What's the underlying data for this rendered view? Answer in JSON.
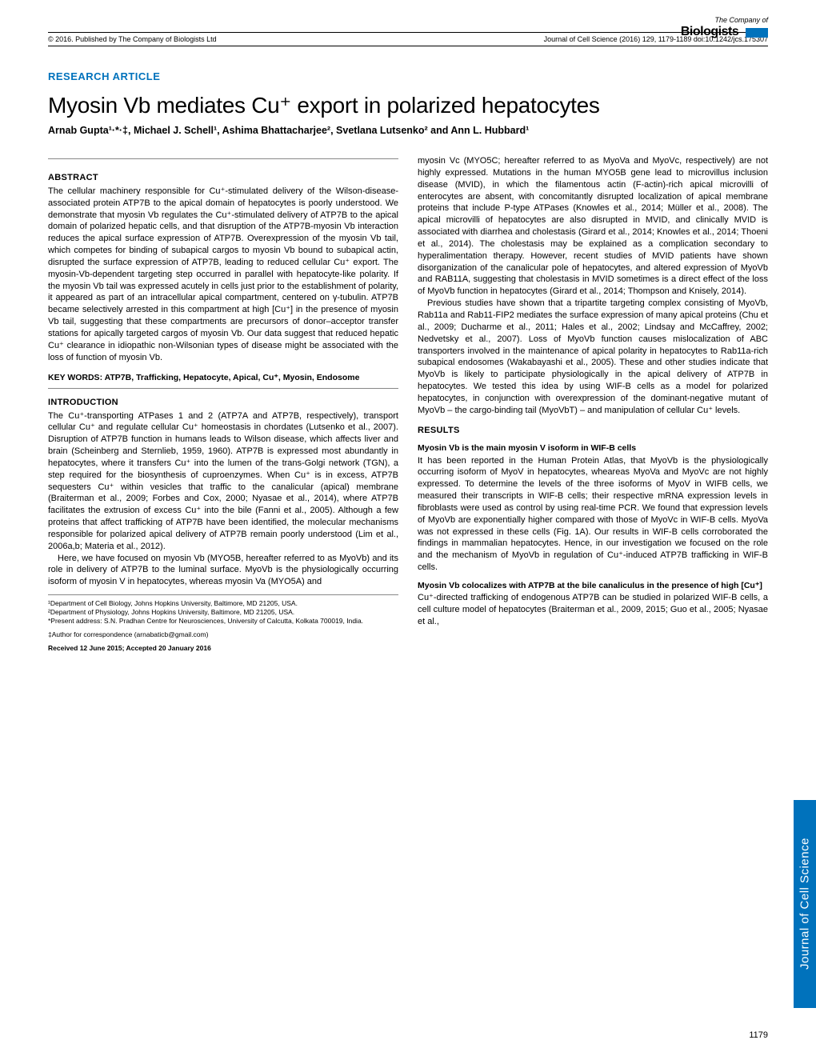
{
  "header": {
    "copyright": "© 2016. Published by The Company of Biologists Ltd",
    "citation": "Journal of Cell Science (2016) 129, 1179-1189 doi:10.1242/jcs.175307"
  },
  "logo": {
    "line1": "The Company of",
    "line2": "Biologists"
  },
  "article_type": "RESEARCH ARTICLE",
  "title": "Myosin Vb mediates Cu⁺ export in polarized hepatocytes",
  "authors": "Arnab Gupta¹·*·‡, Michael J. Schell¹, Ashima Bhattacharjee², Svetlana Lutsenko² and Ann L. Hubbard¹",
  "abstract": {
    "heading": "ABSTRACT",
    "text": "The cellular machinery responsible for Cu⁺-stimulated delivery of the Wilson-disease-associated protein ATP7B to the apical domain of hepatocytes is poorly understood. We demonstrate that myosin Vb regulates the Cu⁺-stimulated delivery of ATP7B to the apical domain of polarized hepatic cells, and that disruption of the ATP7B-myosin Vb interaction reduces the apical surface expression of ATP7B. Overexpression of the myosin Vb tail, which competes for binding of subapical cargos to myosin Vb bound to subapical actin, disrupted the surface expression of ATP7B, leading to reduced cellular Cu⁺ export. The myosin-Vb-dependent targeting step occurred in parallel with hepatocyte-like polarity. If the myosin Vb tail was expressed acutely in cells just prior to the establishment of polarity, it appeared as part of an intracellular apical compartment, centered on γ-tubulin. ATP7B became selectively arrested in this compartment at high [Cu⁺] in the presence of myosin Vb tail, suggesting that these compartments are precursors of donor–acceptor transfer stations for apically targeted cargos of myosin Vb. Our data suggest that reduced hepatic Cu⁺ clearance in idiopathic non-Wilsonian types of disease might be associated with the loss of function of myosin Vb."
  },
  "keywords": "KEY WORDS: ATP7B, Trafficking, Hepatocyte, Apical, Cu⁺, Myosin, Endosome",
  "introduction": {
    "heading": "INTRODUCTION",
    "p1": "The Cu⁺-transporting ATPases 1 and 2 (ATP7A and ATP7B, respectively), transport cellular Cu⁺ and regulate cellular Cu⁺ homeostasis in chordates (Lutsenko et al., 2007). Disruption of ATP7B function in humans leads to Wilson disease, which affects liver and brain (Scheinberg and Sternlieb, 1959, 1960). ATP7B is expressed most abundantly in hepatocytes, where it transfers Cu⁺ into the lumen of the trans-Golgi network (TGN), a step required for the biosynthesis of cuproenzymes. When Cu⁺ is in excess, ATP7B sequesters Cu⁺ within vesicles that traffic to the canalicular (apical) membrane (Braiterman et al., 2009; Forbes and Cox, 2000; Nyasae et al., 2014), where ATP7B facilitates the extrusion of excess Cu⁺ into the bile (Fanni et al., 2005). Although a few proteins that affect trafficking of ATP7B have been identified, the molecular mechanisms responsible for polarized apical delivery of ATP7B remain poorly understood (Lim et al., 2006a,b; Materia et al., 2012).",
    "p2": "Here, we have focused on myosin Vb (MYO5B, hereafter referred to as MyoVb) and its role in delivery of ATP7B to the luminal surface. MyoVb is the physiologically occurring isoform of myosin V in hepatocytes, whereas myosin Va (MYO5A) and"
  },
  "col2": {
    "p1": "myosin Vc (MYO5C; hereafter referred to as MyoVa and MyoVc, respectively) are not highly expressed. Mutations in the human MYO5B gene lead to microvillus inclusion disease (MVID), in which the filamentous actin (F-actin)-rich apical microvilli of enterocytes are absent, with concomitantly disrupted localization of apical membrane proteins that include P-type ATPases (Knowles et al., 2014; Müller et al., 2008). The apical microvilli of hepatocytes are also disrupted in MVID, and clinically MVID is associated with diarrhea and cholestasis (Girard et al., 2014; Knowles et al., 2014; Thoeni et al., 2014). The cholestasis may be explained as a complication secondary to hyperalimentation therapy. However, recent studies of MVID patients have shown disorganization of the canalicular pole of hepatocytes, and altered expression of MyoVb and RAB11A, suggesting that cholestasis in MVID sometimes is a direct effect of the loss of MyoVb function in hepatocytes (Girard et al., 2014; Thompson and Knisely, 2014).",
    "p2": "Previous studies have shown that a tripartite targeting complex consisting of MyoVb, Rab11a and Rab11-FIP2 mediates the surface expression of many apical proteins (Chu et al., 2009; Ducharme et al., 2011; Hales et al., 2002; Lindsay and McCaffrey, 2002; Nedvetsky et al., 2007). Loss of MyoVb function causes mislocalization of ABC transporters involved in the maintenance of apical polarity in hepatocytes to Rab11a-rich subapical endosomes (Wakabayashi et al., 2005). These and other studies indicate that MyoVb is likely to participate physiologically in the apical delivery of ATP7B in hepatocytes. We tested this idea by using WIF-B cells as a model for polarized hepatocytes, in conjunction with overexpression of the dominant-negative mutant of MyoVb – the cargo-binding tail (MyoVbT) – and manipulation of cellular Cu⁺ levels."
  },
  "results": {
    "heading": "RESULTS",
    "sub1_head": "Myosin Vb is the main myosin V isoform in WIF-B cells",
    "sub1_text": "It has been reported in the Human Protein Atlas, that MyoVb is the physiologically occurring isoform of MyoV in hepatocytes, wheareas MyoVa and MyoVc are not highly expressed. To determine the levels of the three isoforms of MyoV in WIFB cells, we measured their transcripts in WIF-B cells; their respective mRNA expression levels in fibroblasts were used as control by using real-time PCR. We found that expression levels of MyoVb are exponentially higher compared with those of MyoVc in WIF-B cells. MyoVa was not expressed in these cells (Fig. 1A). Our results in WIF-B cells corroborated the findings in mammalian hepatocytes. Hence, in our investigation we focused on the role and the mechanism of MyoVb in regulation of Cu⁺-induced ATP7B trafficking in WIF-B cells.",
    "sub2_head": "Myosin Vb colocalizes with ATP7B at the bile canaliculus in the presence of high [Cu⁺]",
    "sub2_text": "Cu⁺-directed trafficking of endogenous ATP7B can be studied in polarized WIF-B cells, a cell culture model of hepatocytes (Braiterman et al., 2009, 2015; Guo et al., 2005; Nyasae et al.,"
  },
  "affiliations": {
    "a1": "¹Department of Cell Biology, Johns Hopkins University, Baltimore, MD 21205, USA.",
    "a2": "²Department of Physiology, Johns Hopkins University, Baltimore, MD 21205, USA.",
    "present": "*Present address: S.N. Pradhan Centre for Neurosciences, University of Calcutta, Kolkata 700019, India.",
    "corr": "‡Author for correspondence (arnabaticb@gmail.com)",
    "received": "Received 12 June 2015; Accepted 20 January 2016"
  },
  "side_tab": "Journal of Cell Science",
  "page_number": "1179",
  "colors": {
    "accent": "#0072bc",
    "text": "#000000",
    "rule": "#888888"
  }
}
